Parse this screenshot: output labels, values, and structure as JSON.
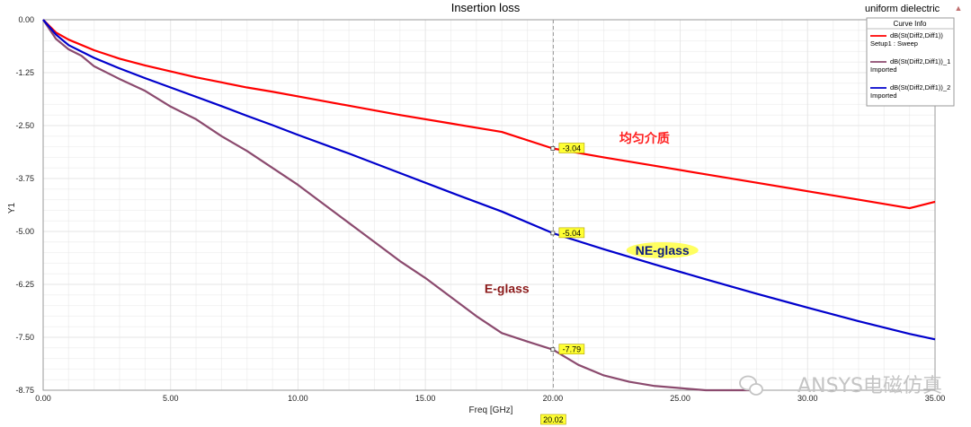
{
  "chart_data": {
    "type": "line",
    "title": "Insertion loss",
    "note": "uniform dielectric",
    "xlabel": "Freq [GHz]",
    "ylabel": "Y1",
    "xlim": [
      0,
      35
    ],
    "ylim": [
      -8.75,
      0
    ],
    "x_ticks": [
      "0.00",
      "5.00",
      "10.00",
      "15.00",
      "20.00",
      "25.00",
      "30.00",
      "35.00"
    ],
    "y_ticks": [
      "0.00",
      "-1.25",
      "-2.50",
      "-3.75",
      "-5.00",
      "-6.25",
      "-7.50",
      "-8.75"
    ],
    "grid": true,
    "legend": {
      "title": "Curve Info",
      "placement": "top-right",
      "entries": [
        {
          "line1": "dB(St(Diff2,Diff1))",
          "line2": "Setup1 : Sweep",
          "color": "#ff0000"
        },
        {
          "line1": "dB(St(Diff2,Diff1))_1",
          "line2": "Imported",
          "color": "#8b4a6e"
        },
        {
          "line1": "dB(St(Diff2,Diff1))_2",
          "line2": "Imported",
          "color": "#0000cc"
        }
      ]
    },
    "series": [
      {
        "color": "#ff0000",
        "x": [
          0,
          0.5,
          1,
          2,
          3,
          4,
          5,
          6,
          7,
          8,
          9,
          10,
          12,
          14,
          16,
          18,
          20,
          22,
          24,
          26,
          28,
          30,
          32,
          34,
          35
        ],
        "y": [
          0,
          -0.3,
          -0.47,
          -0.72,
          -0.92,
          -1.08,
          -1.22,
          -1.36,
          -1.48,
          -1.6,
          -1.7,
          -1.81,
          -2.03,
          -2.25,
          -2.45,
          -2.65,
          -3.04,
          -3.25,
          -3.45,
          -3.65,
          -3.85,
          -4.05,
          -4.25,
          -4.45,
          -4.3
        ]
      },
      {
        "color": "#8b4a6e",
        "x": [
          0,
          0.5,
          1,
          1.5,
          2,
          3,
          4,
          5,
          6,
          7,
          8,
          9,
          10,
          11,
          12,
          13,
          14,
          15,
          16,
          17,
          18,
          19,
          20,
          21,
          22,
          23,
          24,
          25,
          26,
          27,
          28
        ],
        "y": [
          0,
          -0.45,
          -0.7,
          -0.85,
          -1.1,
          -1.4,
          -1.68,
          -2.05,
          -2.35,
          -2.75,
          -3.1,
          -3.5,
          -3.9,
          -4.35,
          -4.8,
          -5.25,
          -5.7,
          -6.1,
          -6.55,
          -7.0,
          -7.4,
          -7.6,
          -7.79,
          -8.15,
          -8.4,
          -8.55,
          -8.65,
          -8.7,
          -8.75,
          -8.75,
          -8.75
        ]
      },
      {
        "color": "#0000cc",
        "x": [
          0,
          0.5,
          1,
          2,
          3,
          4,
          5,
          6,
          7,
          8,
          9,
          10,
          12,
          14,
          16,
          18,
          20,
          22,
          24,
          26,
          28,
          30,
          32,
          34,
          35
        ],
        "y": [
          0,
          -0.35,
          -0.6,
          -0.9,
          -1.15,
          -1.38,
          -1.6,
          -1.82,
          -2.04,
          -2.27,
          -2.49,
          -2.72,
          -3.16,
          -3.62,
          -4.08,
          -4.53,
          -5.04,
          -5.42,
          -5.78,
          -6.13,
          -6.47,
          -6.8,
          -7.12,
          -7.42,
          -7.55
        ]
      }
    ],
    "cursor": {
      "x": 20.02,
      "label": "20.02"
    },
    "markers": [
      {
        "x": 20,
        "y": -3.04,
        "label": "-3.04"
      },
      {
        "x": 20,
        "y": -5.04,
        "label": "-5.04"
      },
      {
        "x": 20,
        "y": -7.79,
        "label": "-7.79"
      }
    ],
    "annotations": [
      {
        "text": "均匀介质",
        "x": 23.6,
        "y": -2.9,
        "color": "#ff2020",
        "highlight": false
      },
      {
        "text": "NE-glass",
        "x": 24.3,
        "y": -5.55,
        "color": "#0a1a80",
        "highlight": true
      },
      {
        "text": "E-glass",
        "x": 18.2,
        "y": -6.45,
        "color": "#8b1a1a",
        "highlight": false
      }
    ],
    "watermark": "ANSYS电磁仿真"
  }
}
